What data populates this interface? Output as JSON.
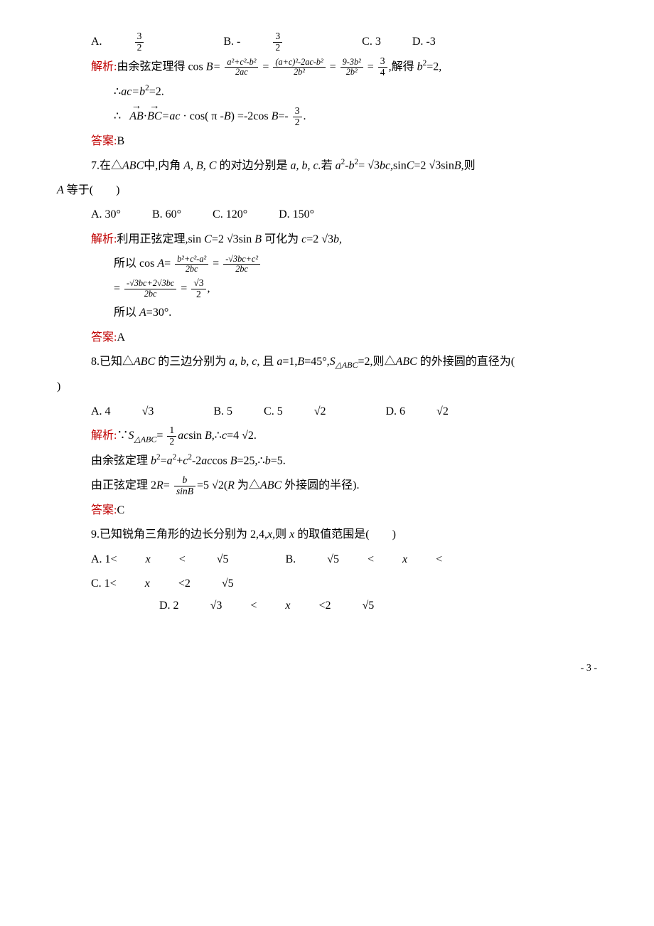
{
  "q6": {
    "choices": {
      "A": "A.",
      "B": "B. -",
      "C": "C. 3",
      "D": "D. -3"
    },
    "frac": {
      "num": "3",
      "den": "2"
    },
    "sol": {
      "l1a": "解析:",
      "l1b": "由余弦定理得 cos ",
      "cosB_eq": ",解得 ",
      "b2eq": "b",
      "b2eq2": "=2,",
      "l2": "∴",
      "l2b": "ac=b",
      "l2c": "=2.",
      "l3a": "∴",
      "vec1": "AB",
      "vec2": "BC",
      "l3b": "=ac",
      "l3c": " · cos( π -",
      "l3d": "B",
      "l3e": ") =-2cos ",
      "l3f": "B",
      "l3g": "=-",
      "ans": "答案:",
      "ansv": "B"
    },
    "fracs": {
      "f1n": "a²+c²-b²",
      "f1d": "2ac",
      "f2n": "(a+c)²-2ac-b²",
      "f2d": "2b²",
      "f3n": "9-3b²",
      "f3d": "2b²",
      "f4n": "3",
      "f4d": "4"
    }
  },
  "q7": {
    "stem1": "7.",
    "stem2": "在△",
    "stem3": "ABC",
    "stem4": "中,内角 ",
    "stem5": "A, B, C",
    "stem6": " 的对边分别是 ",
    "stem7": "a, b, c.",
    "stem8": "若 ",
    "stem9": "a",
    "stem10": "-",
    "stem11": "b",
    "stem12": "=",
    "sqrt3": "√3",
    "stem13": "bc,",
    "stem14": "sin",
    "stem15": "C",
    "stem16": "=2",
    "stem17": "sin",
    "stem18": "B,",
    "stem19": "则",
    "l2a": "A",
    "l2b": " 等于(　　)",
    "choices": {
      "A": "A. 30°",
      "B": "B. 60°",
      "C": "C. 120°",
      "D": "D. 150°"
    },
    "sol": {
      "l1a": "解析:",
      "l1b": "利用正弦定理,sin ",
      "l1c": "C",
      "l1d": "=2",
      "l1e": "sin ",
      "l1f": "B",
      "l1g": " 可化为 ",
      "l1h": "c",
      "l1i": "=2",
      "l1j": "b,",
      "l2a": "所以 cos ",
      "l2b": "A",
      "l2c": "=",
      "f1n": "b²+c²-a²",
      "f1d": "2bc",
      "f2n": "-√3bc+c²",
      "f2d": "2bc",
      "l3a": "=",
      "f3n": "-√3bc+2√3bc",
      "f3d": "2bc",
      "f4n": "√3",
      "f4d": "2",
      "l3b": ",",
      "l4a": "所以 ",
      "l4b": "A",
      "l4c": "=30°.",
      "ans": "答案:",
      "ansv": "A"
    }
  },
  "q8": {
    "stem1": "8.",
    "stem2": "已知△",
    "stem3": "ABC",
    "stem4": " 的三边分别为 ",
    "stem5": "a, b, c,",
    "stem6": " 且 ",
    "stem7": "a",
    "stem8": "=1,",
    "stem9": "B",
    "stem10": "=45°,",
    "stem11": "S",
    "tri": "△ABC",
    "stem12": "=2,则△",
    "stem13": "ABC",
    "stem14": " 的外接圆的直径为(",
    "brk": ")",
    "choices": {
      "A": "A. 4",
      "B": "B. 5",
      "C": "C. 5",
      "D": "D. 6"
    },
    "sqrt3": "√3",
    "sqrt2": "√2",
    "sol": {
      "l1a": "解析:",
      "l1b": "∵",
      "l1c": "S",
      "l1d": "=",
      "halfn": "1",
      "halfd": "2",
      "l1e": "ac",
      "l1f": "sin ",
      "l1g": "B,",
      "l1h": "∴",
      "l1i": "c",
      "l1j": "=4",
      "l2a": "由余弦定理 ",
      "l2b": "b",
      "l2c": "=",
      "l2d": "a",
      "l2e": "+",
      "l2f": "c",
      "l2g": "-2",
      "l2h": "ac",
      "l2i": "cos ",
      "l2j": "B",
      "l2k": "=25,",
      "l2l": "∴",
      "l2m": "b",
      "l2n": "=5.",
      "l3a": "由正弦定理 2",
      "l3b": "R",
      "l3c": "=",
      "fbn": "b",
      "fbd": "sinB",
      "l3d": "=5",
      "l3e": "(",
      "l3f": "R",
      "l3g": " 为△",
      "l3h": "ABC",
      "l3i": " 外接圆的半径).",
      "ans": "答案:",
      "ansv": "C"
    }
  },
  "q9": {
    "stem1": "9.",
    "stem2": "已知锐角三角形的边长分别为 2,4,",
    "stem3": "x,",
    "stem4": "则 ",
    "stem5": "x",
    "stem6": " 的取值范围是(　　)",
    "choices": {
      "A1": "A. 1<",
      "A2": "x",
      "A3": "<",
      "B1": "B.",
      "B2": "<",
      "B3": "x",
      "B4": "<",
      "C1": "C. 1<",
      "C2": "x",
      "C3": "<2",
      "D1": "D. 2",
      "D2": "<",
      "D3": "x",
      "D4": "<2"
    },
    "sqrt5": "√5",
    "sqrt3": "√3"
  },
  "page": "- 3 -"
}
